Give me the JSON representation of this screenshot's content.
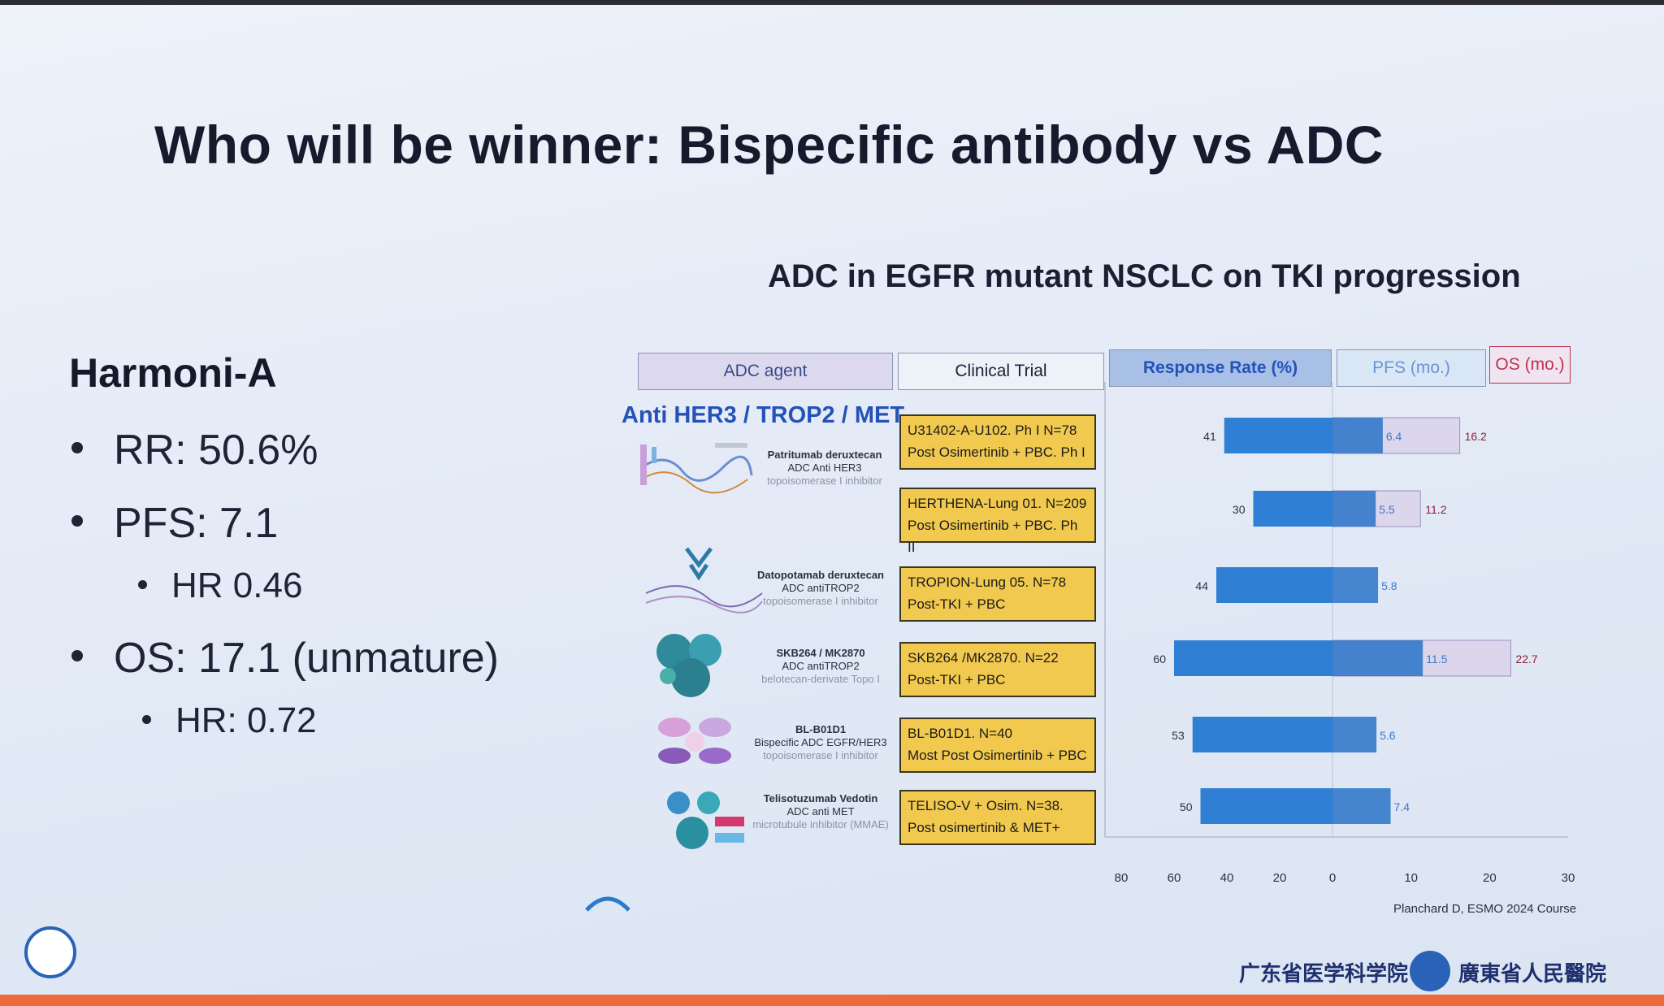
{
  "slide": {
    "title": "Who will be winner: Bispecific antibody vs ADC",
    "subtitle": "ADC in EGFR mutant NSCLC on TKI progression",
    "source": "Planchard D, ESMO 2024 Course"
  },
  "left": {
    "heading": "Harmoni-A",
    "bullets": [
      {
        "text": "RR:  50.6%"
      },
      {
        "text": "PFS: 7.1"
      },
      {
        "text": "HR 0.46"
      },
      {
        "text": "OS: 17.1 (unmature)"
      },
      {
        "text": "HR: 0.72"
      }
    ]
  },
  "table": {
    "headers": {
      "agent": "ADC agent",
      "trial": "Clinical Trial",
      "rr": "Response Rate (%)",
      "pfs": "PFS (mo.)",
      "os": "OS (mo.)"
    },
    "category": "Anti HER3 / TROP2 / MET",
    "agents": [
      {
        "name": "Patritumab deruxtecan",
        "target": "ADC Anti HER3",
        "mech": "topoisomerase I inhibitor"
      },
      {
        "name": "Datopotamab deruxtecan",
        "target": "ADC antiTROP2",
        "mech": "topoisomerase I inhibitor"
      },
      {
        "name": "SKB264 / MK2870",
        "target": "ADC antiTROP2",
        "mech": "belotecan-derivate Topo I"
      },
      {
        "name": "BL-B01D1",
        "target": "Bispecific ADC EGFR/HER3",
        "mech": "topoisomerase I inhibitor"
      },
      {
        "name": "Telisotuzumab Vedotin",
        "target": "ADC anti MET",
        "mech": "microtubule inhibitor (MMAE)"
      }
    ],
    "trials": [
      {
        "line1": "U31402-A-U102. Ph I N=78",
        "line2": "Post Osimertinib + PBC. Ph I"
      },
      {
        "line1": "HERTHENA-Lung 01. N=209",
        "line2": "Post Osimertinib + PBC. Ph II"
      },
      {
        "line1": "TROPION-Lung 05. N=78",
        "line2": "Post-TKI + PBC"
      },
      {
        "line1": "SKB264 /MK2870. N=22",
        "line2": "Post-TKI + PBC"
      },
      {
        "line1": "BL-B01D1. N=40",
        "line2": "Most Post Osimertinib + PBC"
      },
      {
        "line1": "TELISO-V + Osim. N=38.",
        "line2": "Post osimertinib & MET+"
      }
    ]
  },
  "chart_data": {
    "type": "bar",
    "orientation": "horizontal",
    "categories": [
      "U31402-A-U102",
      "HERTHENA-Lung 01",
      "TROPION-Lung 05",
      "SKB264 /MK2870",
      "BL-B01D1",
      "TELISO-V + Osim."
    ],
    "series": [
      {
        "name": "Response Rate (%)",
        "values": [
          41,
          30,
          44,
          60,
          53,
          50
        ],
        "color": "#2f7fd4",
        "direction": "left"
      },
      {
        "name": "PFS (mo.)",
        "values": [
          6.4,
          5.5,
          5.8,
          11.5,
          5.6,
          7.4
        ],
        "color": "#2a73c8",
        "direction": "right"
      },
      {
        "name": "OS (mo.)",
        "values": [
          16.2,
          11.2,
          null,
          22.7,
          null,
          null
        ],
        "color": "#dcd6ec",
        "direction": "right"
      }
    ],
    "x_ticks": [
      "80",
      "60",
      "40",
      "20",
      "0",
      "10",
      "20",
      "30"
    ],
    "xlim_left": [
      0,
      80
    ],
    "xlim_right": [
      0,
      30
    ]
  },
  "colors": {
    "accent": "#2452b8",
    "trial_box": "#f1c94e",
    "bar": "#2f7fd4",
    "os_bar": "#dcd6ec",
    "bottom_bar": "#ec6a3c"
  },
  "logos": {
    "academy": "广东省医学科学院",
    "hospital": "廣東省人民醫院"
  }
}
